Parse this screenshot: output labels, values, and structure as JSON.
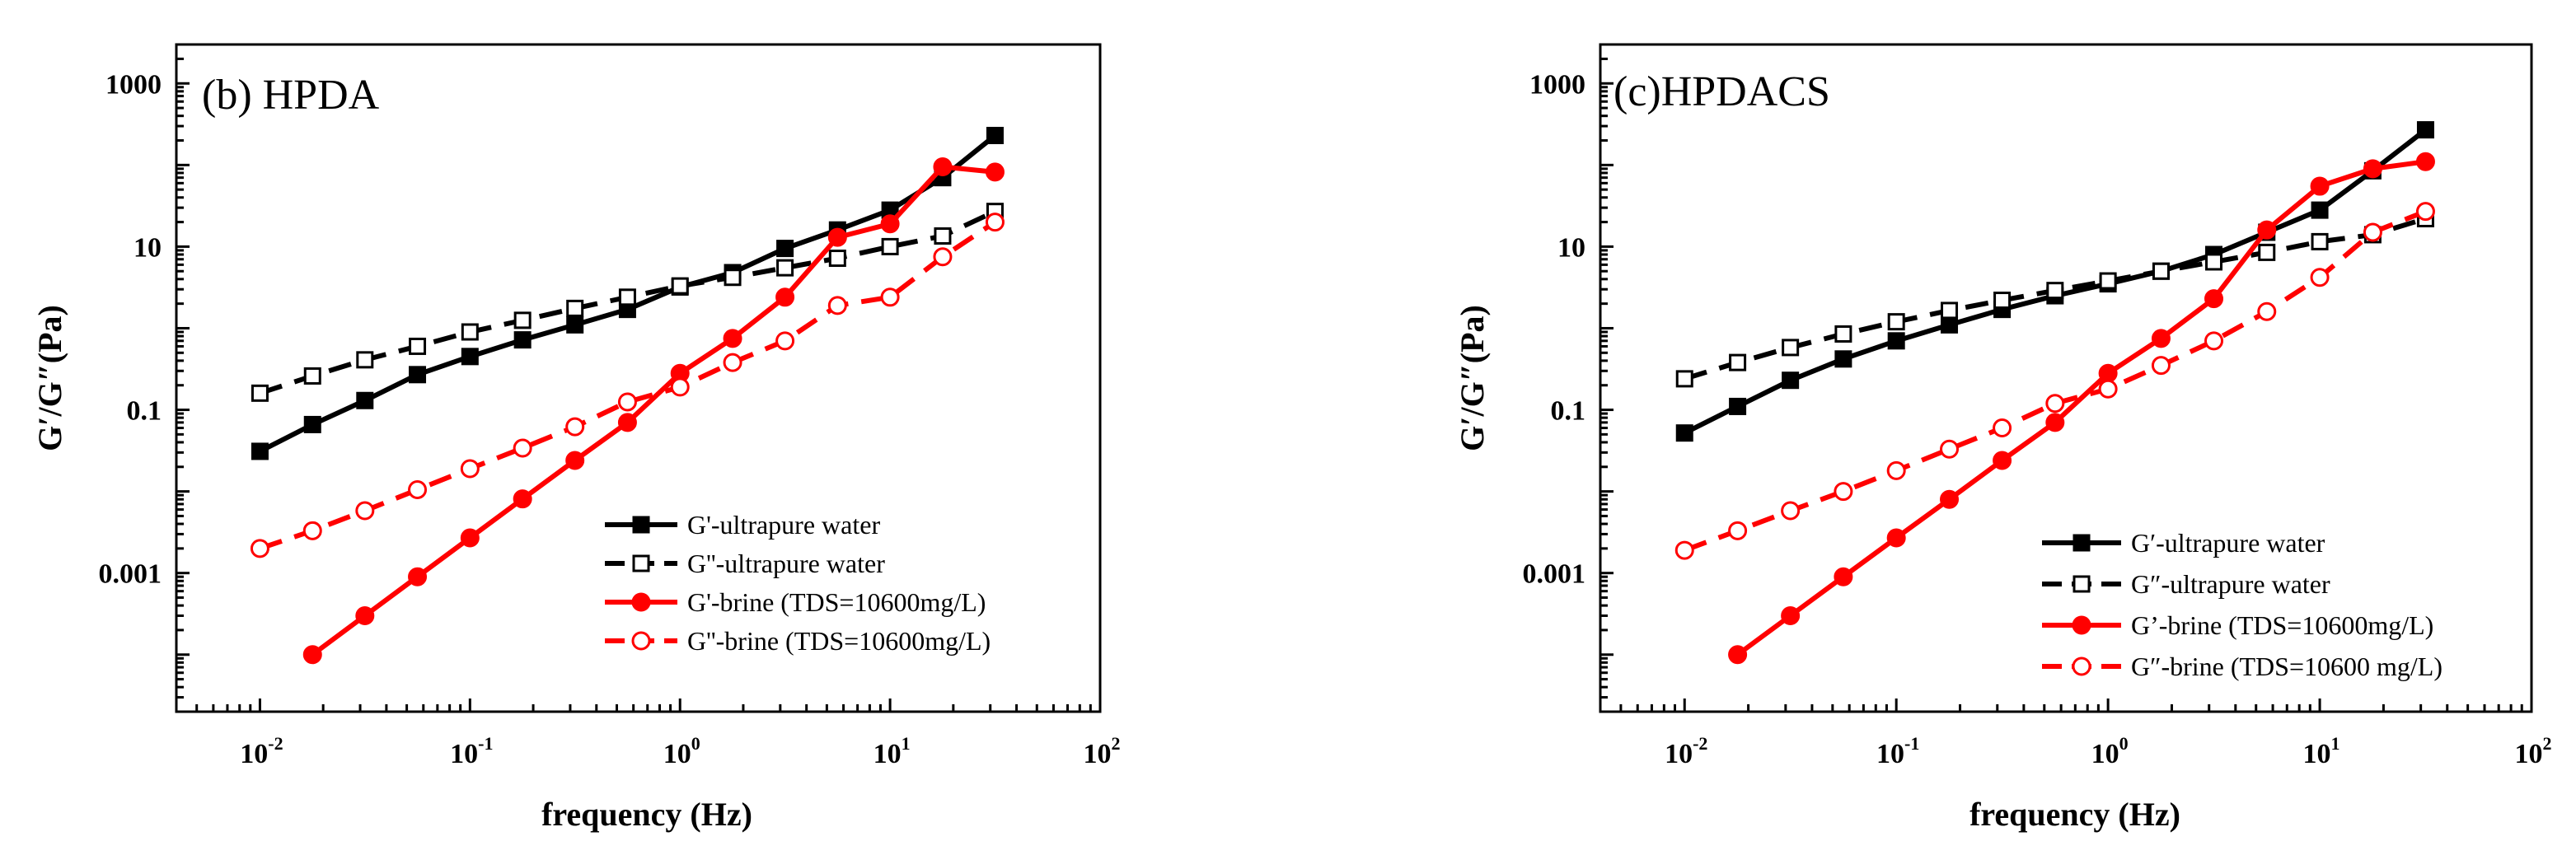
{
  "chart_data": [
    {
      "type": "line",
      "title": "(b) HPDA",
      "xlabel": "frequency (Hz)",
      "ylabel": "G′/G″(Pa)",
      "xscale": "log",
      "yscale": "log",
      "xlim": [
        0.004,
        100
      ],
      "ylim": [
        2e-05,
        3000
      ],
      "xticks": [
        {
          "value": 0.01,
          "base": "10",
          "exp": "-2"
        },
        {
          "value": 0.1,
          "base": "10",
          "exp": "-1"
        },
        {
          "value": 1,
          "base": "10",
          "exp": "0"
        },
        {
          "value": 10,
          "base": "10",
          "exp": "1"
        },
        {
          "value": 100,
          "base": "10",
          "exp": "2"
        }
      ],
      "yticks": [
        {
          "value": 0.001,
          "label": "0.001"
        },
        {
          "value": 0.1,
          "label": "0.1"
        },
        {
          "value": 10,
          "label": "10"
        },
        {
          "value": 1000,
          "label": "1000"
        }
      ],
      "legend_position": "bottom-right",
      "series": [
        {
          "name": "G'-ultrapure water",
          "color": "#000000",
          "marker": "square-filled",
          "dash": false,
          "x": [
            0.01,
            0.0178,
            0.0316,
            0.0562,
            0.1,
            0.178,
            0.316,
            0.562,
            1,
            1.78,
            3.16,
            5.62,
            10,
            17.8,
            31.6
          ],
          "y": [
            0.031,
            0.066,
            0.13,
            0.27,
            0.45,
            0.72,
            1.1,
            1.7,
            3.2,
            4.8,
            9.5,
            16,
            28,
            70,
            230
          ]
        },
        {
          "name": "G''-ultrapure water",
          "color": "#000000",
          "marker": "square-open",
          "dash": true,
          "x": [
            0.01,
            0.0178,
            0.0316,
            0.0562,
            0.1,
            0.178,
            0.316,
            0.562,
            1,
            1.78,
            3.16,
            5.62,
            10,
            17.8,
            31.6
          ],
          "y": [
            0.16,
            0.26,
            0.41,
            0.6,
            0.9,
            1.25,
            1.75,
            2.4,
            3.3,
            4.2,
            5.5,
            7.2,
            10,
            13.5,
            27
          ]
        },
        {
          "name": "G'-brine (TDS=10600mg/L)",
          "color": "#ff0000",
          "marker": "circle-filled",
          "dash": false,
          "x": [
            0.0178,
            0.0316,
            0.0562,
            0.1,
            0.178,
            0.316,
            0.562,
            1,
            1.78,
            3.16,
            5.62,
            10,
            17.8,
            31.6
          ],
          "y": [
            0.0001,
            0.0003,
            0.0009,
            0.0027,
            0.0081,
            0.024,
            0.07,
            0.28,
            0.75,
            2.4,
            13,
            19,
            95,
            82
          ]
        },
        {
          "name": "G''-brine (TDS=10600mg/L)",
          "color": "#ff0000",
          "marker": "circle-open",
          "dash": true,
          "x": [
            0.01,
            0.0178,
            0.0316,
            0.0562,
            0.1,
            0.178,
            0.316,
            0.562,
            1,
            1.78,
            3.16,
            5.62,
            10,
            17.8,
            31.6
          ],
          "y": [
            0.002,
            0.0033,
            0.0058,
            0.0105,
            0.019,
            0.034,
            0.062,
            0.125,
            0.19,
            0.38,
            0.7,
            1.9,
            2.4,
            7.5,
            20
          ]
        }
      ]
    },
    {
      "type": "line",
      "title": "(c)HPDACS",
      "xlabel": "frequency (Hz)",
      "ylabel": "G′/G″(Pa)",
      "xscale": "log",
      "yscale": "log",
      "xlim": [
        0.004,
        100
      ],
      "ylim": [
        2e-05,
        3000
      ],
      "xticks": [
        {
          "value": 0.01,
          "base": "10",
          "exp": "-2"
        },
        {
          "value": 0.1,
          "base": "10",
          "exp": "-1"
        },
        {
          "value": 1,
          "base": "10",
          "exp": "0"
        },
        {
          "value": 10,
          "base": "10",
          "exp": "1"
        },
        {
          "value": 100,
          "base": "10",
          "exp": "2"
        }
      ],
      "yticks": [
        {
          "value": 0.001,
          "label": "0.001"
        },
        {
          "value": 0.1,
          "label": "0.1"
        },
        {
          "value": 10,
          "label": "10"
        },
        {
          "value": 1000,
          "label": "1000"
        }
      ],
      "legend_position": "bottom-right",
      "series": [
        {
          "name": "G′-ultrapure water",
          "color": "#000000",
          "marker": "square-filled",
          "dash": false,
          "x": [
            0.01,
            0.0178,
            0.0316,
            0.0562,
            0.1,
            0.178,
            0.316,
            0.562,
            1,
            1.78,
            3.16,
            5.62,
            10,
            17.8,
            31.6
          ],
          "y": [
            0.052,
            0.11,
            0.23,
            0.42,
            0.7,
            1.1,
            1.7,
            2.5,
            3.5,
            5,
            8,
            15,
            28,
            85,
            270
          ]
        },
        {
          "name": "G″-ultrapure water",
          "color": "#000000",
          "marker": "square-open",
          "dash": true,
          "x": [
            0.01,
            0.0178,
            0.0316,
            0.0562,
            0.1,
            0.178,
            0.316,
            0.562,
            1,
            1.78,
            3.16,
            5.62,
            10,
            17.8,
            31.6
          ],
          "y": [
            0.24,
            0.38,
            0.58,
            0.85,
            1.2,
            1.65,
            2.2,
            2.9,
            3.8,
            5,
            6.5,
            8.5,
            11.5,
            14,
            22
          ]
        },
        {
          "name": "G’-brine  (TDS=10600mg/L)",
          "color": "#ff0000",
          "marker": "circle-filled",
          "dash": false,
          "x": [
            0.0178,
            0.0316,
            0.0562,
            0.1,
            0.178,
            0.316,
            0.562,
            1,
            1.78,
            3.16,
            5.62,
            10,
            17.8,
            31.6
          ],
          "y": [
            0.0001,
            0.0003,
            0.0009,
            0.0027,
            0.008,
            0.024,
            0.07,
            0.28,
            0.75,
            2.3,
            16,
            55,
            90,
            110
          ]
        },
        {
          "name": "G″-brine (TDS=10600 mg/L)",
          "color": "#ff0000",
          "marker": "circle-open",
          "dash": true,
          "x": [
            0.01,
            0.0178,
            0.0316,
            0.0562,
            0.1,
            0.178,
            0.316,
            0.562,
            1,
            1.78,
            3.16,
            5.62,
            10,
            17.8,
            31.6
          ],
          "y": [
            0.0019,
            0.0033,
            0.0058,
            0.01,
            0.018,
            0.033,
            0.06,
            0.12,
            0.18,
            0.35,
            0.7,
            1.6,
            4.2,
            15,
            27
          ]
        }
      ]
    }
  ]
}
